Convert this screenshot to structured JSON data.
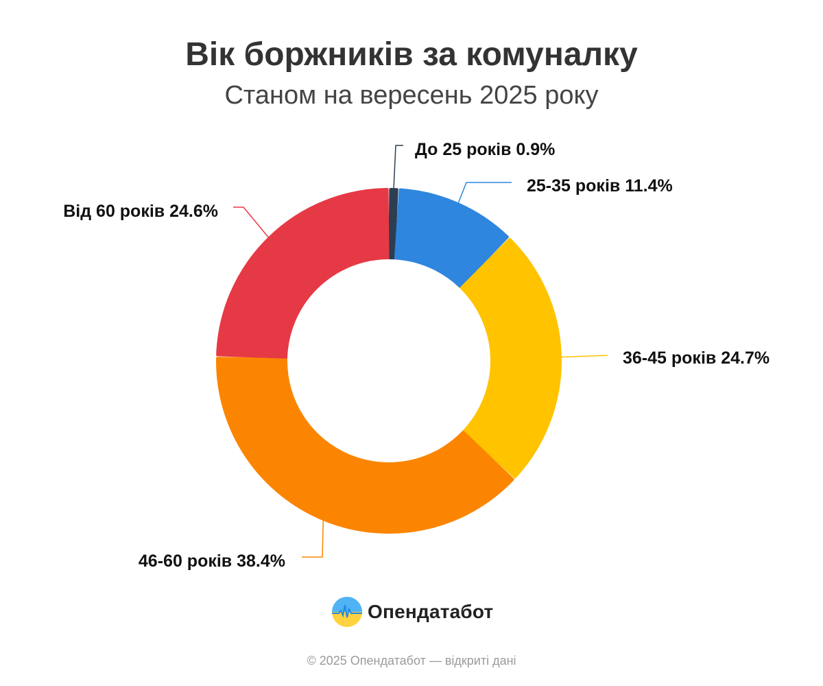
{
  "header": {
    "title": "Вік боржників за комуналку",
    "subtitle": "Станом на вересень 2025 року"
  },
  "chart_data": {
    "type": "pie",
    "variant": "donut",
    "title": "Вік боржників за комуналку",
    "subtitle": "Станом на вересень 2025 року",
    "unit": "%",
    "slices": [
      {
        "label": "До 25 років",
        "value": 0.9,
        "display": "До 25 років 0.9%",
        "color": "#2c3e50"
      },
      {
        "label": "25-35 років",
        "value": 11.4,
        "display": "25-35 років 11.4%",
        "color": "#2e86de"
      },
      {
        "label": "36-45 років",
        "value": 24.7,
        "display": "36-45 років 24.7%",
        "color": "#ffc300"
      },
      {
        "label": "46-60 років",
        "value": 38.4,
        "display": "46-60 років 38.4%",
        "color": "#fb8500"
      },
      {
        "label": "Від 60 років",
        "value": 24.6,
        "display": "Від 60 років 24.6%",
        "color": "#e63946"
      }
    ],
    "start_angle_deg": 0,
    "direction": "clockwise",
    "labels": "outside with leader lines",
    "legend": "none"
  },
  "brand": {
    "name": "Опендатабот",
    "logo_icon": "opendatabot-logo-icon",
    "logo_colors": [
      "#4fb3f6",
      "#ffd23f",
      "#1e88e5"
    ]
  },
  "footer": {
    "text": "© 2025 Опендатабот — відкриті дані"
  }
}
